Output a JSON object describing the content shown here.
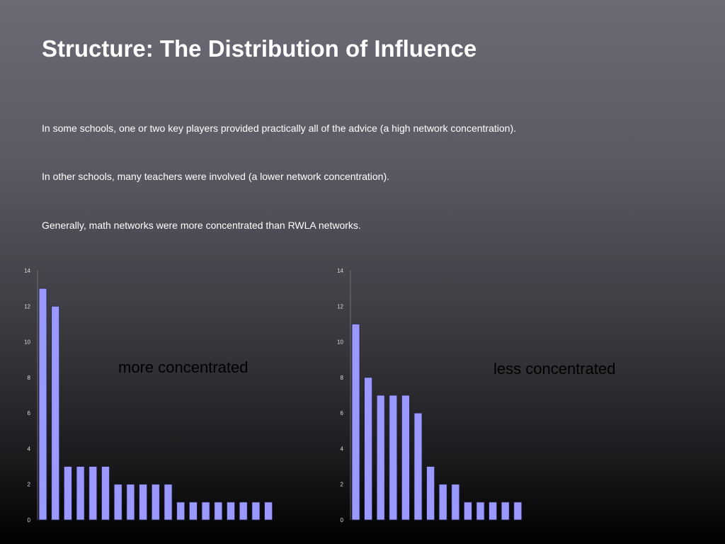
{
  "slide": {
    "title": "Structure:  The Distribution of Influence",
    "paragraphs": [
      "In some schools, one or two key players provided practically all of the advice (a high network concentration).",
      "In other schools, many teachers were involved (a lower network concentration).",
      "Generally, math networks were more concentrated than RWLA networks."
    ]
  },
  "chart_data": [
    {
      "type": "bar",
      "annotation": "more concentrated",
      "ylim": [
        0,
        14
      ],
      "yticks": [
        0,
        2,
        4,
        6,
        8,
        10,
        12,
        14
      ],
      "values": [
        13,
        12,
        3,
        3,
        3,
        3,
        2,
        2,
        2,
        2,
        2,
        1,
        1,
        1,
        1,
        1,
        1,
        1,
        1
      ],
      "bar_color": "#9999ff"
    },
    {
      "type": "bar",
      "annotation": "less concentrated",
      "ylim": [
        0,
        14
      ],
      "yticks": [
        0,
        2,
        4,
        6,
        8,
        10,
        12,
        14
      ],
      "values": [
        11,
        8,
        7,
        7,
        7,
        6,
        3,
        2,
        2,
        1,
        1,
        1,
        1,
        1
      ],
      "bar_color": "#9999ff"
    }
  ]
}
